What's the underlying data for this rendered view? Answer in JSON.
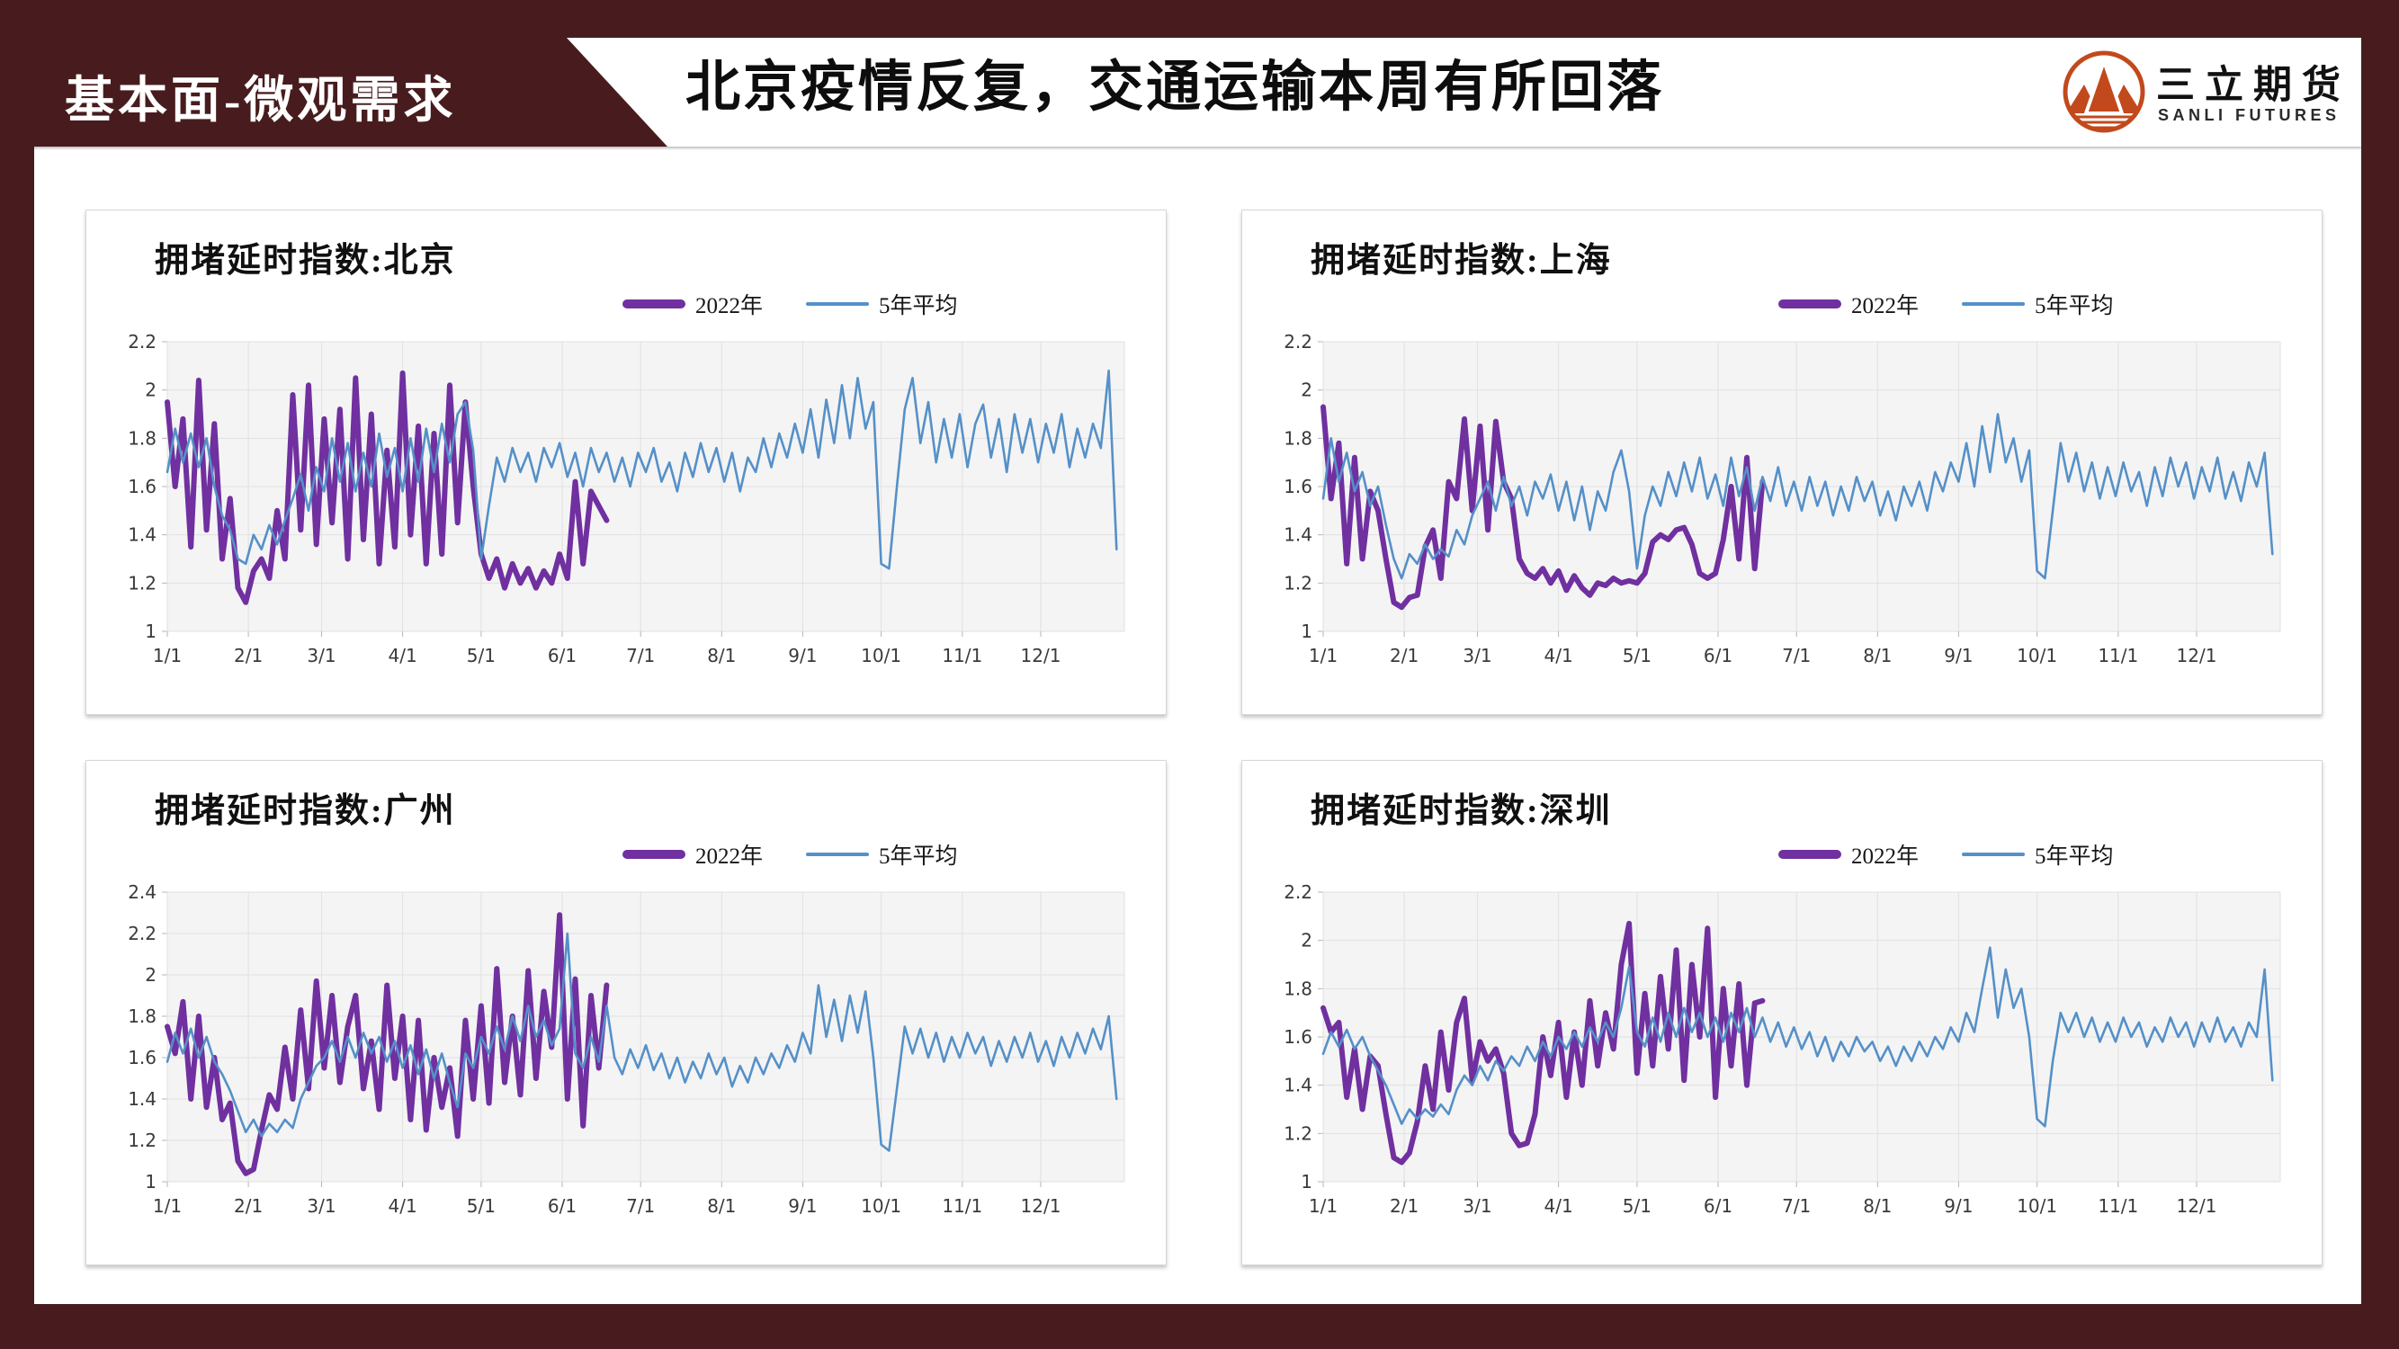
{
  "header": {
    "section_label": "基本面-微观需求",
    "title": "北京疫情反复，交通运输本周有所回落"
  },
  "logo": {
    "name": "三立期货",
    "subtitle": "SANLI FUTURES"
  },
  "legend": {
    "series1": "2022年",
    "series2": "5年平均"
  },
  "colors": {
    "maroon": "#481c1e",
    "logo_orange": "#c2491c",
    "series_2022": "#7030a0",
    "series_avg": "#5590c8",
    "plot_bg": "#f4f4f4",
    "grid": "#e1e1e1"
  },
  "chart_data": [
    {
      "type": "line",
      "title": "拥堵延时指数:北京",
      "ylim": [
        1,
        2.2
      ],
      "ytick_step": 0.2,
      "x_domain": [
        0,
        366
      ],
      "grid": true,
      "x_tick_days": [
        0,
        31,
        59,
        90,
        120,
        151,
        181,
        212,
        243,
        273,
        304,
        334
      ],
      "x_tick_labels": [
        "1/1",
        "2/1",
        "3/1",
        "4/1",
        "5/1",
        "6/1",
        "7/1",
        "8/1",
        "9/1",
        "10/1",
        "11/1",
        "12/1"
      ],
      "series": [
        {
          "name": "2022年",
          "color": "#7030a0",
          "width": 6,
          "start_day": 0,
          "step_days": 3,
          "values": [
            1.95,
            1.6,
            1.88,
            1.35,
            2.04,
            1.42,
            1.86,
            1.3,
            1.55,
            1.18,
            1.12,
            1.25,
            1.3,
            1.22,
            1.5,
            1.3,
            1.98,
            1.42,
            2.02,
            1.36,
            1.88,
            1.45,
            1.92,
            1.3,
            2.05,
            1.38,
            1.9,
            1.28,
            1.75,
            1.35,
            2.07,
            1.4,
            1.85,
            1.28,
            1.82,
            1.32,
            2.02,
            1.45,
            1.95,
            1.6,
            1.32,
            1.22,
            1.3,
            1.18,
            1.28,
            1.2,
            1.26,
            1.18,
            1.25,
            1.2,
            1.32,
            1.22,
            1.62,
            1.28,
            1.58,
            1.52,
            1.46
          ]
        },
        {
          "name": "5年平均",
          "color": "#5590c8",
          "width": 2.6,
          "start_day": 0,
          "step_days": 3,
          "values": [
            1.66,
            1.84,
            1.7,
            1.82,
            1.68,
            1.8,
            1.6,
            1.48,
            1.42,
            1.3,
            1.28,
            1.4,
            1.34,
            1.44,
            1.36,
            1.46,
            1.55,
            1.65,
            1.5,
            1.68,
            1.58,
            1.8,
            1.62,
            1.78,
            1.58,
            1.74,
            1.6,
            1.82,
            1.64,
            1.76,
            1.58,
            1.8,
            1.62,
            1.84,
            1.66,
            1.86,
            1.7,
            1.9,
            1.95,
            1.75,
            1.3,
            1.52,
            1.72,
            1.62,
            1.76,
            1.66,
            1.74,
            1.62,
            1.76,
            1.68,
            1.78,
            1.64,
            1.74,
            1.6,
            1.76,
            1.66,
            1.74,
            1.62,
            1.72,
            1.6,
            1.74,
            1.66,
            1.76,
            1.62,
            1.7,
            1.58,
            1.74,
            1.64,
            1.78,
            1.66,
            1.76,
            1.62,
            1.74,
            1.58,
            1.72,
            1.66,
            1.8,
            1.68,
            1.82,
            1.72,
            1.86,
            1.74,
            1.92,
            1.72,
            1.96,
            1.78,
            2.02,
            1.8,
            2.05,
            1.84,
            1.95,
            1.28,
            1.26,
            1.6,
            1.92,
            2.05,
            1.78,
            1.95,
            1.7,
            1.88,
            1.72,
            1.9,
            1.68,
            1.86,
            1.94,
            1.72,
            1.88,
            1.66,
            1.9,
            1.74,
            1.88,
            1.7,
            1.86,
            1.74,
            1.9,
            1.68,
            1.84,
            1.72,
            1.86,
            1.76,
            2.08,
            1.34
          ]
        }
      ]
    },
    {
      "type": "line",
      "title": "拥堵延时指数:上海",
      "ylim": [
        1,
        2.2
      ],
      "ytick_step": 0.2,
      "x_domain": [
        0,
        366
      ],
      "grid": true,
      "x_tick_days": [
        0,
        31,
        59,
        90,
        120,
        151,
        181,
        212,
        243,
        273,
        304,
        334
      ],
      "x_tick_labels": [
        "1/1",
        "2/1",
        "3/1",
        "4/1",
        "5/1",
        "6/1",
        "7/1",
        "8/1",
        "9/1",
        "10/1",
        "11/1",
        "12/1"
      ],
      "series": [
        {
          "name": "2022年",
          "color": "#7030a0",
          "width": 6,
          "start_day": 0,
          "step_days": 3,
          "values": [
            1.93,
            1.55,
            1.78,
            1.28,
            1.72,
            1.3,
            1.58,
            1.5,
            1.3,
            1.12,
            1.1,
            1.14,
            1.15,
            1.35,
            1.42,
            1.22,
            1.62,
            1.55,
            1.88,
            1.5,
            1.85,
            1.42,
            1.87,
            1.62,
            1.55,
            1.3,
            1.24,
            1.22,
            1.26,
            1.2,
            1.25,
            1.17,
            1.23,
            1.18,
            1.15,
            1.2,
            1.19,
            1.22,
            1.2,
            1.21,
            1.2,
            1.24,
            1.37,
            1.4,
            1.38,
            1.42,
            1.43,
            1.36,
            1.24,
            1.22,
            1.24,
            1.38,
            1.6,
            1.3,
            1.72,
            1.26,
            1.62
          ]
        },
        {
          "name": "5年平均",
          "color": "#5590c8",
          "width": 2.6,
          "start_day": 0,
          "step_days": 3,
          "values": [
            1.55,
            1.8,
            1.62,
            1.74,
            1.58,
            1.66,
            1.52,
            1.6,
            1.44,
            1.3,
            1.22,
            1.32,
            1.28,
            1.36,
            1.3,
            1.34,
            1.31,
            1.42,
            1.36,
            1.48,
            1.55,
            1.62,
            1.5,
            1.64,
            1.52,
            1.6,
            1.48,
            1.62,
            1.55,
            1.65,
            1.5,
            1.62,
            1.46,
            1.6,
            1.42,
            1.58,
            1.5,
            1.66,
            1.75,
            1.58,
            1.26,
            1.48,
            1.6,
            1.52,
            1.66,
            1.56,
            1.7,
            1.58,
            1.72,
            1.55,
            1.65,
            1.52,
            1.72,
            1.56,
            1.68,
            1.5,
            1.64,
            1.54,
            1.68,
            1.52,
            1.62,
            1.5,
            1.64,
            1.52,
            1.62,
            1.48,
            1.6,
            1.5,
            1.64,
            1.54,
            1.62,
            1.48,
            1.58,
            1.46,
            1.6,
            1.52,
            1.62,
            1.5,
            1.66,
            1.58,
            1.7,
            1.62,
            1.78,
            1.6,
            1.85,
            1.66,
            1.9,
            1.7,
            1.8,
            1.62,
            1.75,
            1.25,
            1.22,
            1.5,
            1.78,
            1.62,
            1.74,
            1.58,
            1.7,
            1.55,
            1.68,
            1.56,
            1.7,
            1.58,
            1.66,
            1.52,
            1.68,
            1.56,
            1.72,
            1.6,
            1.7,
            1.55,
            1.68,
            1.58,
            1.72,
            1.55,
            1.66,
            1.54,
            1.7,
            1.6,
            1.74,
            1.32
          ]
        }
      ]
    },
    {
      "type": "line",
      "title": "拥堵延时指数:广州",
      "ylim": [
        1,
        2.4
      ],
      "ytick_step": 0.2,
      "x_domain": [
        0,
        366
      ],
      "grid": true,
      "x_tick_days": [
        0,
        31,
        59,
        90,
        120,
        151,
        181,
        212,
        243,
        273,
        304,
        334
      ],
      "x_tick_labels": [
        "1/1",
        "2/1",
        "3/1",
        "4/1",
        "5/1",
        "6/1",
        "7/1",
        "8/1",
        "9/1",
        "10/1",
        "11/1",
        "12/1"
      ],
      "series": [
        {
          "name": "2022年",
          "color": "#7030a0",
          "width": 6,
          "start_day": 0,
          "step_days": 3,
          "values": [
            1.75,
            1.62,
            1.87,
            1.4,
            1.8,
            1.36,
            1.6,
            1.3,
            1.38,
            1.1,
            1.04,
            1.06,
            1.25,
            1.42,
            1.35,
            1.65,
            1.4,
            1.83,
            1.45,
            1.97,
            1.55,
            1.9,
            1.48,
            1.75,
            1.9,
            1.45,
            1.68,
            1.35,
            1.95,
            1.5,
            1.8,
            1.3,
            1.78,
            1.25,
            1.6,
            1.36,
            1.55,
            1.22,
            1.78,
            1.4,
            1.85,
            1.38,
            2.03,
            1.48,
            1.8,
            1.42,
            2.02,
            1.5,
            1.92,
            1.65,
            2.29,
            1.4,
            1.98,
            1.27,
            1.9,
            1.55,
            1.95
          ]
        },
        {
          "name": "5年平均",
          "color": "#5590c8",
          "width": 2.6,
          "start_day": 0,
          "step_days": 3,
          "values": [
            1.58,
            1.72,
            1.62,
            1.74,
            1.6,
            1.7,
            1.58,
            1.52,
            1.44,
            1.34,
            1.24,
            1.3,
            1.22,
            1.28,
            1.24,
            1.3,
            1.26,
            1.4,
            1.48,
            1.56,
            1.6,
            1.68,
            1.58,
            1.7,
            1.6,
            1.72,
            1.62,
            1.7,
            1.58,
            1.68,
            1.55,
            1.66,
            1.52,
            1.64,
            1.5,
            1.62,
            1.48,
            1.36,
            1.62,
            1.55,
            1.7,
            1.62,
            1.75,
            1.64,
            1.8,
            1.68,
            1.85,
            1.7,
            1.78,
            1.66,
            1.74,
            2.2,
            1.62,
            1.55,
            1.7,
            1.58,
            1.85,
            1.6,
            1.52,
            1.64,
            1.55,
            1.66,
            1.54,
            1.62,
            1.5,
            1.6,
            1.48,
            1.58,
            1.5,
            1.62,
            1.52,
            1.6,
            1.46,
            1.56,
            1.48,
            1.6,
            1.52,
            1.62,
            1.55,
            1.66,
            1.58,
            1.72,
            1.62,
            1.95,
            1.7,
            1.88,
            1.68,
            1.9,
            1.72,
            1.92,
            1.6,
            1.18,
            1.15,
            1.45,
            1.75,
            1.62,
            1.74,
            1.6,
            1.72,
            1.58,
            1.7,
            1.6,
            1.72,
            1.62,
            1.7,
            1.56,
            1.68,
            1.58,
            1.7,
            1.6,
            1.72,
            1.58,
            1.68,
            1.56,
            1.7,
            1.6,
            1.72,
            1.62,
            1.74,
            1.64,
            1.8,
            1.4
          ]
        }
      ]
    },
    {
      "type": "line",
      "title": "拥堵延时指数:深圳",
      "ylim": [
        1,
        2.2
      ],
      "ytick_step": 0.2,
      "x_domain": [
        0,
        366
      ],
      "grid": true,
      "x_tick_days": [
        0,
        31,
        59,
        90,
        120,
        151,
        181,
        212,
        243,
        273,
        304,
        334
      ],
      "x_tick_labels": [
        "1/1",
        "2/1",
        "3/1",
        "4/1",
        "5/1",
        "6/1",
        "7/1",
        "8/1",
        "9/1",
        "10/1",
        "11/1",
        "12/1"
      ],
      "series": [
        {
          "name": "2022年",
          "color": "#7030a0",
          "width": 6,
          "start_day": 0,
          "step_days": 3,
          "values": [
            1.72,
            1.62,
            1.66,
            1.35,
            1.55,
            1.3,
            1.52,
            1.48,
            1.28,
            1.1,
            1.08,
            1.12,
            1.25,
            1.48,
            1.3,
            1.62,
            1.38,
            1.66,
            1.76,
            1.42,
            1.58,
            1.5,
            1.55,
            1.45,
            1.2,
            1.15,
            1.16,
            1.28,
            1.6,
            1.44,
            1.66,
            1.35,
            1.62,
            1.4,
            1.75,
            1.48,
            1.7,
            1.55,
            1.9,
            2.07,
            1.45,
            1.78,
            1.48,
            1.85,
            1.55,
            1.96,
            1.42,
            1.9,
            1.6,
            2.05,
            1.35,
            1.8,
            1.48,
            1.82,
            1.4,
            1.74,
            1.75
          ]
        },
        {
          "name": "5年平均",
          "color": "#5590c8",
          "width": 2.6,
          "start_day": 0,
          "step_days": 3,
          "values": [
            1.53,
            1.62,
            1.56,
            1.63,
            1.55,
            1.6,
            1.52,
            1.46,
            1.4,
            1.32,
            1.24,
            1.3,
            1.26,
            1.3,
            1.27,
            1.32,
            1.28,
            1.38,
            1.44,
            1.4,
            1.48,
            1.42,
            1.5,
            1.46,
            1.52,
            1.48,
            1.56,
            1.5,
            1.58,
            1.52,
            1.6,
            1.55,
            1.62,
            1.56,
            1.64,
            1.58,
            1.66,
            1.6,
            1.72,
            1.89,
            1.62,
            1.56,
            1.68,
            1.58,
            1.7,
            1.6,
            1.72,
            1.62,
            1.7,
            1.6,
            1.68,
            1.58,
            1.7,
            1.62,
            1.72,
            1.6,
            1.68,
            1.58,
            1.66,
            1.56,
            1.64,
            1.55,
            1.62,
            1.52,
            1.6,
            1.5,
            1.58,
            1.52,
            1.6,
            1.54,
            1.58,
            1.5,
            1.56,
            1.48,
            1.56,
            1.5,
            1.58,
            1.52,
            1.6,
            1.55,
            1.64,
            1.58,
            1.7,
            1.62,
            1.8,
            1.97,
            1.68,
            1.88,
            1.72,
            1.8,
            1.6,
            1.26,
            1.23,
            1.5,
            1.7,
            1.62,
            1.7,
            1.6,
            1.68,
            1.58,
            1.66,
            1.58,
            1.68,
            1.6,
            1.66,
            1.56,
            1.64,
            1.58,
            1.68,
            1.6,
            1.66,
            1.56,
            1.66,
            1.58,
            1.68,
            1.58,
            1.64,
            1.56,
            1.66,
            1.6,
            1.88,
            1.42
          ]
        }
      ]
    }
  ]
}
